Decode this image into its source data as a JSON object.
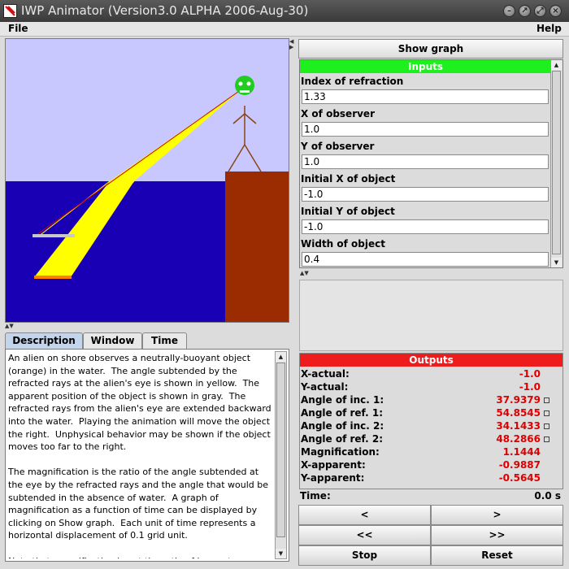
{
  "window": {
    "title": "IWP Animator (Version3.0 ALPHA 2006-Aug-30)"
  },
  "menu": {
    "file": "File",
    "help": "Help"
  },
  "scene": {
    "colors": {
      "sky": "#c8c8ff",
      "water": "#1a00b4",
      "shore": "#9b2b00",
      "refracted_rays": "#ffff00",
      "object": "#ff8000",
      "apparent_object": "#c8c8c8",
      "ray_line": "#cc0000",
      "alien_head": "#22cc22",
      "stick_figure": "#8b4513"
    }
  },
  "tabs": [
    "Description",
    "Window",
    "Time"
  ],
  "description": "An alien on shore observes a neutrally-buoyant object (orange) in the water.  The angle subtended by the refracted rays at the alien's eye is shown in yellow.  The apparent position of the object is shown in gray.  The refracted rays from the alien's eye are extended backward into the water.  Playing the animation will move the object the right.  Unphysical behavior may be shown if the object moves too far to the right.\n\nThe magnification is the ratio of the angle subtended at the eye by the refracted rays and the angle that would be subtended in the absence of water.  A graph of magnification as a function of time can be displayed by clicking on Show graph.  Each unit of time represents a horizontal displacement of 0.1 grid unit.\n\nNote that magnification is not the ratio of image to",
  "show_graph_label": "Show graph",
  "inputs": {
    "header": "Inputs",
    "header_color": "#1ef01e",
    "fields": [
      {
        "label": "Index of refraction",
        "value": "1.33"
      },
      {
        "label": "X of observer",
        "value": "1.0"
      },
      {
        "label": "Y of observer",
        "value": "1.0"
      },
      {
        "label": "Initial X of object",
        "value": "-1.0"
      },
      {
        "label": "Initial Y of object",
        "value": "-1.0"
      },
      {
        "label": "Width of object",
        "value": "0.4"
      }
    ]
  },
  "outputs": {
    "header": "Outputs",
    "header_color": "#ee1c1c",
    "rows": [
      {
        "label": "X-actual:",
        "value": "-1.0",
        "box": false
      },
      {
        "label": "Y-actual:",
        "value": "-1.0",
        "box": false
      },
      {
        "label": "Angle of inc. 1:",
        "value": "37.9379",
        "box": true
      },
      {
        "label": "Angle of ref. 1:",
        "value": "54.8545",
        "box": true
      },
      {
        "label": "Angle of inc. 2:",
        "value": "34.1433",
        "box": true
      },
      {
        "label": "Angle of ref. 2:",
        "value": "48.2866",
        "box": true
      },
      {
        "label": "Magnification:",
        "value": "1.1444",
        "box": false
      },
      {
        "label": "X-apparent:",
        "value": "-0.9887",
        "box": false
      },
      {
        "label": "Y-apparent:",
        "value": "-0.5645",
        "box": false
      }
    ]
  },
  "time": {
    "label": "Time:",
    "value": "0.0 s"
  },
  "controls": {
    "step_back": "<",
    "step_forward": ">",
    "rewind": "<<",
    "fast_forward": ">>",
    "stop": "Stop",
    "reset": "Reset"
  }
}
